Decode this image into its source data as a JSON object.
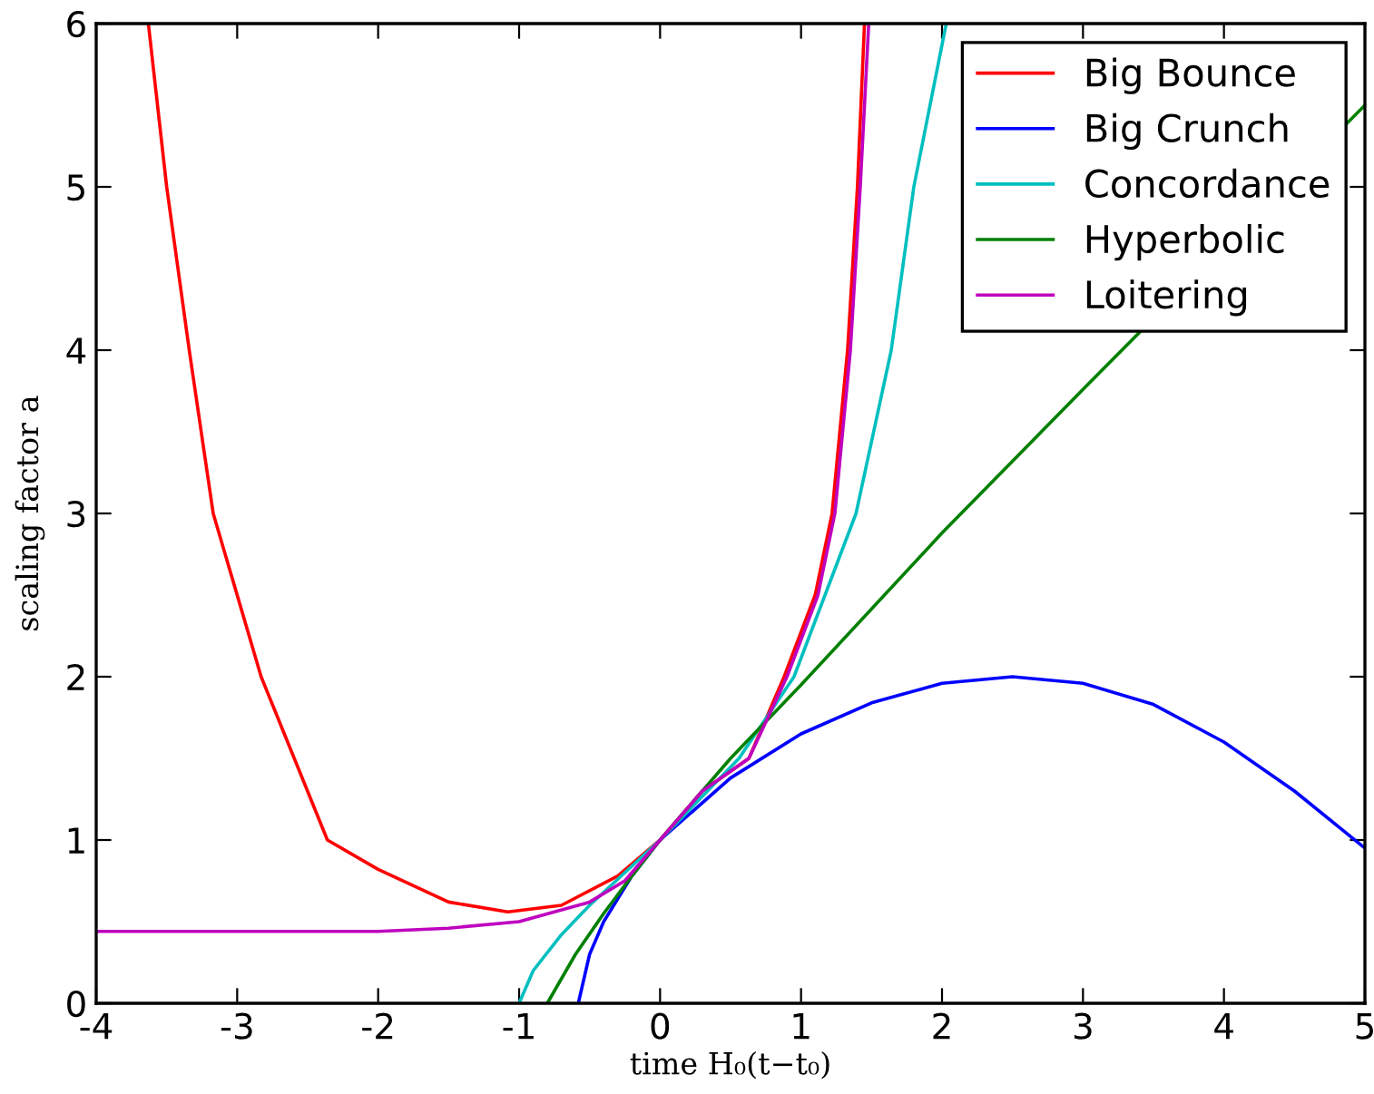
{
  "chart_data": {
    "type": "line",
    "xlabel": "time H₀(t−t₀)",
    "ylabel": "scaling factor a",
    "xlim": [
      -4,
      5
    ],
    "ylim": [
      0,
      6
    ],
    "xticks": [
      -4,
      -3,
      -2,
      -1,
      0,
      1,
      2,
      3,
      4,
      5
    ],
    "yticks": [
      0,
      1,
      2,
      3,
      4,
      5,
      6
    ],
    "grid": false,
    "legend": "top right",
    "marker": "none",
    "line_style": "solid",
    "series": [
      {
        "name": "Big Bounce",
        "color": "#ff0000",
        "x": [
          -3.63,
          -3.5,
          -3.34,
          -3.17,
          -2.83,
          -2.36,
          -2.0,
          -1.5,
          -1.08,
          -0.7,
          -0.3,
          0,
          0.3,
          0.63,
          0.88,
          1.1,
          1.22,
          1.33,
          1.4,
          1.45
        ],
        "values": [
          6,
          5,
          4,
          3,
          2,
          1,
          0.82,
          0.62,
          0.56,
          0.6,
          0.78,
          1,
          1.3,
          1.5,
          2,
          2.5,
          3,
          4,
          5,
          6
        ]
      },
      {
        "name": "Big Crunch",
        "color": "#0000ff",
        "x": [
          -0.58,
          -0.5,
          -0.4,
          -0.2,
          0,
          0.5,
          1,
          1.5,
          2,
          2.5,
          3,
          3.5,
          4,
          4.5,
          5
        ],
        "values": [
          0,
          0.3,
          0.5,
          0.78,
          1,
          1.38,
          1.65,
          1.84,
          1.96,
          2.0,
          1.96,
          1.83,
          1.6,
          1.3,
          0.95
        ]
      },
      {
        "name": "Concordance",
        "color": "#00bfbf",
        "x": [
          -1.0,
          -0.9,
          -0.7,
          -0.5,
          -0.25,
          0,
          0.56,
          0.95,
          1.39,
          1.64,
          1.8,
          2.03
        ],
        "values": [
          0,
          0.2,
          0.42,
          0.6,
          0.8,
          1,
          1.5,
          2,
          3,
          4,
          5,
          6
        ]
      },
      {
        "name": "Hyperbolic",
        "color": "#008000",
        "x": [
          -0.8,
          -0.6,
          -0.4,
          -0.2,
          0,
          0.5,
          1,
          2,
          3,
          5
        ],
        "values": [
          0,
          0.3,
          0.55,
          0.78,
          1,
          1.5,
          1.95,
          2.88,
          3.76,
          5.5
        ]
      },
      {
        "name": "Loitering",
        "color": "#bf00bf",
        "x": [
          -4,
          -3,
          -2,
          -1.5,
          -1,
          -0.5,
          -0.25,
          0,
          0.3,
          0.63,
          0.9,
          1.12,
          1.24,
          1.35,
          1.42,
          1.48
        ],
        "values": [
          0.44,
          0.44,
          0.44,
          0.46,
          0.5,
          0.62,
          0.75,
          1,
          1.3,
          1.5,
          2,
          2.5,
          3,
          4,
          5,
          6
        ]
      }
    ]
  }
}
